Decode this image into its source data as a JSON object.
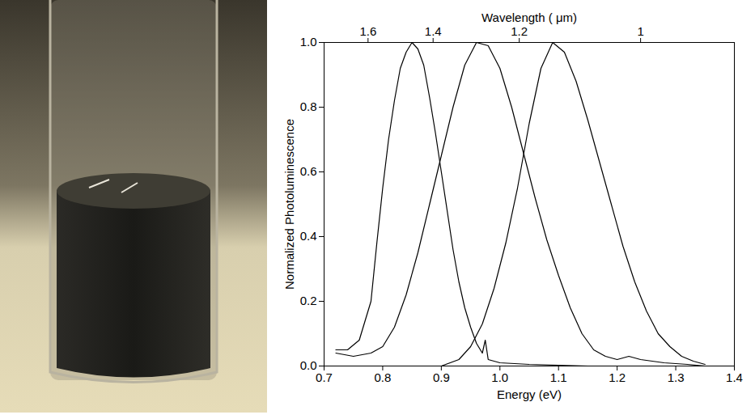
{
  "chart_data": {
    "type": "line",
    "xlabel": "Energy (eV)",
    "ylabel": "Normalized Photoluminescence",
    "x2label": "Wavelength ( μm)",
    "xlim": [
      0.7,
      1.4
    ],
    "xticks": [
      0.7,
      0.8,
      0.9,
      {
        "value": 1,
        "label": "1.0"
      },
      1.1,
      1.2,
      1.3,
      1.4
    ],
    "x2ticks": [
      {
        "value": 0.775,
        "label": "1.6"
      },
      {
        "value": 0.886,
        "label": "1.4"
      },
      {
        "value": 1.033,
        "label": "1.2"
      },
      {
        "value": 1.24,
        "label": "1"
      }
    ],
    "ylim": [
      0,
      1.0
    ],
    "yticks": [
      {
        "value": 0,
        "label": "0.0"
      },
      0.2,
      0.4,
      0.6,
      0.8,
      {
        "value": 1,
        "label": "1.0"
      }
    ],
    "grid": false,
    "series": [
      {
        "color": "#000000",
        "x": [
          0.72,
          0.74,
          0.76,
          0.78,
          0.79,
          0.8,
          0.81,
          0.82,
          0.83,
          0.84,
          0.85,
          0.86,
          0.87,
          0.88,
          0.89,
          0.9,
          0.91,
          0.92,
          0.93,
          0.94,
          0.95,
          0.96,
          0.97,
          0.975,
          0.98,
          1.0,
          1.05,
          1.15
        ],
        "values": [
          0.05,
          0.05,
          0.08,
          0.2,
          0.38,
          0.55,
          0.7,
          0.82,
          0.92,
          0.97,
          1.0,
          0.98,
          0.93,
          0.83,
          0.72,
          0.6,
          0.48,
          0.36,
          0.26,
          0.18,
          0.12,
          0.07,
          0.04,
          0.08,
          0.02,
          0.01,
          0.005,
          0.0
        ]
      },
      {
        "color": "#000000",
        "x": [
          0.72,
          0.75,
          0.78,
          0.8,
          0.82,
          0.84,
          0.86,
          0.88,
          0.9,
          0.92,
          0.94,
          0.96,
          0.98,
          1.0,
          1.02,
          1.04,
          1.06,
          1.08,
          1.1,
          1.12,
          1.14,
          1.16,
          1.18,
          1.2,
          1.22,
          1.24,
          1.28,
          1.32,
          1.35
        ],
        "values": [
          0.04,
          0.03,
          0.04,
          0.06,
          0.12,
          0.22,
          0.35,
          0.5,
          0.65,
          0.8,
          0.93,
          1.0,
          0.99,
          0.92,
          0.8,
          0.66,
          0.52,
          0.39,
          0.28,
          0.18,
          0.1,
          0.05,
          0.03,
          0.02,
          0.03,
          0.02,
          0.01,
          0.005,
          0.0
        ]
      },
      {
        "color": "#000000",
        "x": [
          0.85,
          0.9,
          0.93,
          0.95,
          0.97,
          0.99,
          1.01,
          1.03,
          1.05,
          1.07,
          1.09,
          1.11,
          1.13,
          1.15,
          1.17,
          1.19,
          1.21,
          1.23,
          1.25,
          1.27,
          1.29,
          1.31,
          1.33,
          1.35
        ],
        "values": [
          0.0,
          0.0,
          0.02,
          0.06,
          0.13,
          0.24,
          0.38,
          0.55,
          0.75,
          0.92,
          1.0,
          0.97,
          0.88,
          0.76,
          0.63,
          0.5,
          0.37,
          0.26,
          0.17,
          0.1,
          0.06,
          0.03,
          0.015,
          0.005
        ]
      }
    ]
  }
}
